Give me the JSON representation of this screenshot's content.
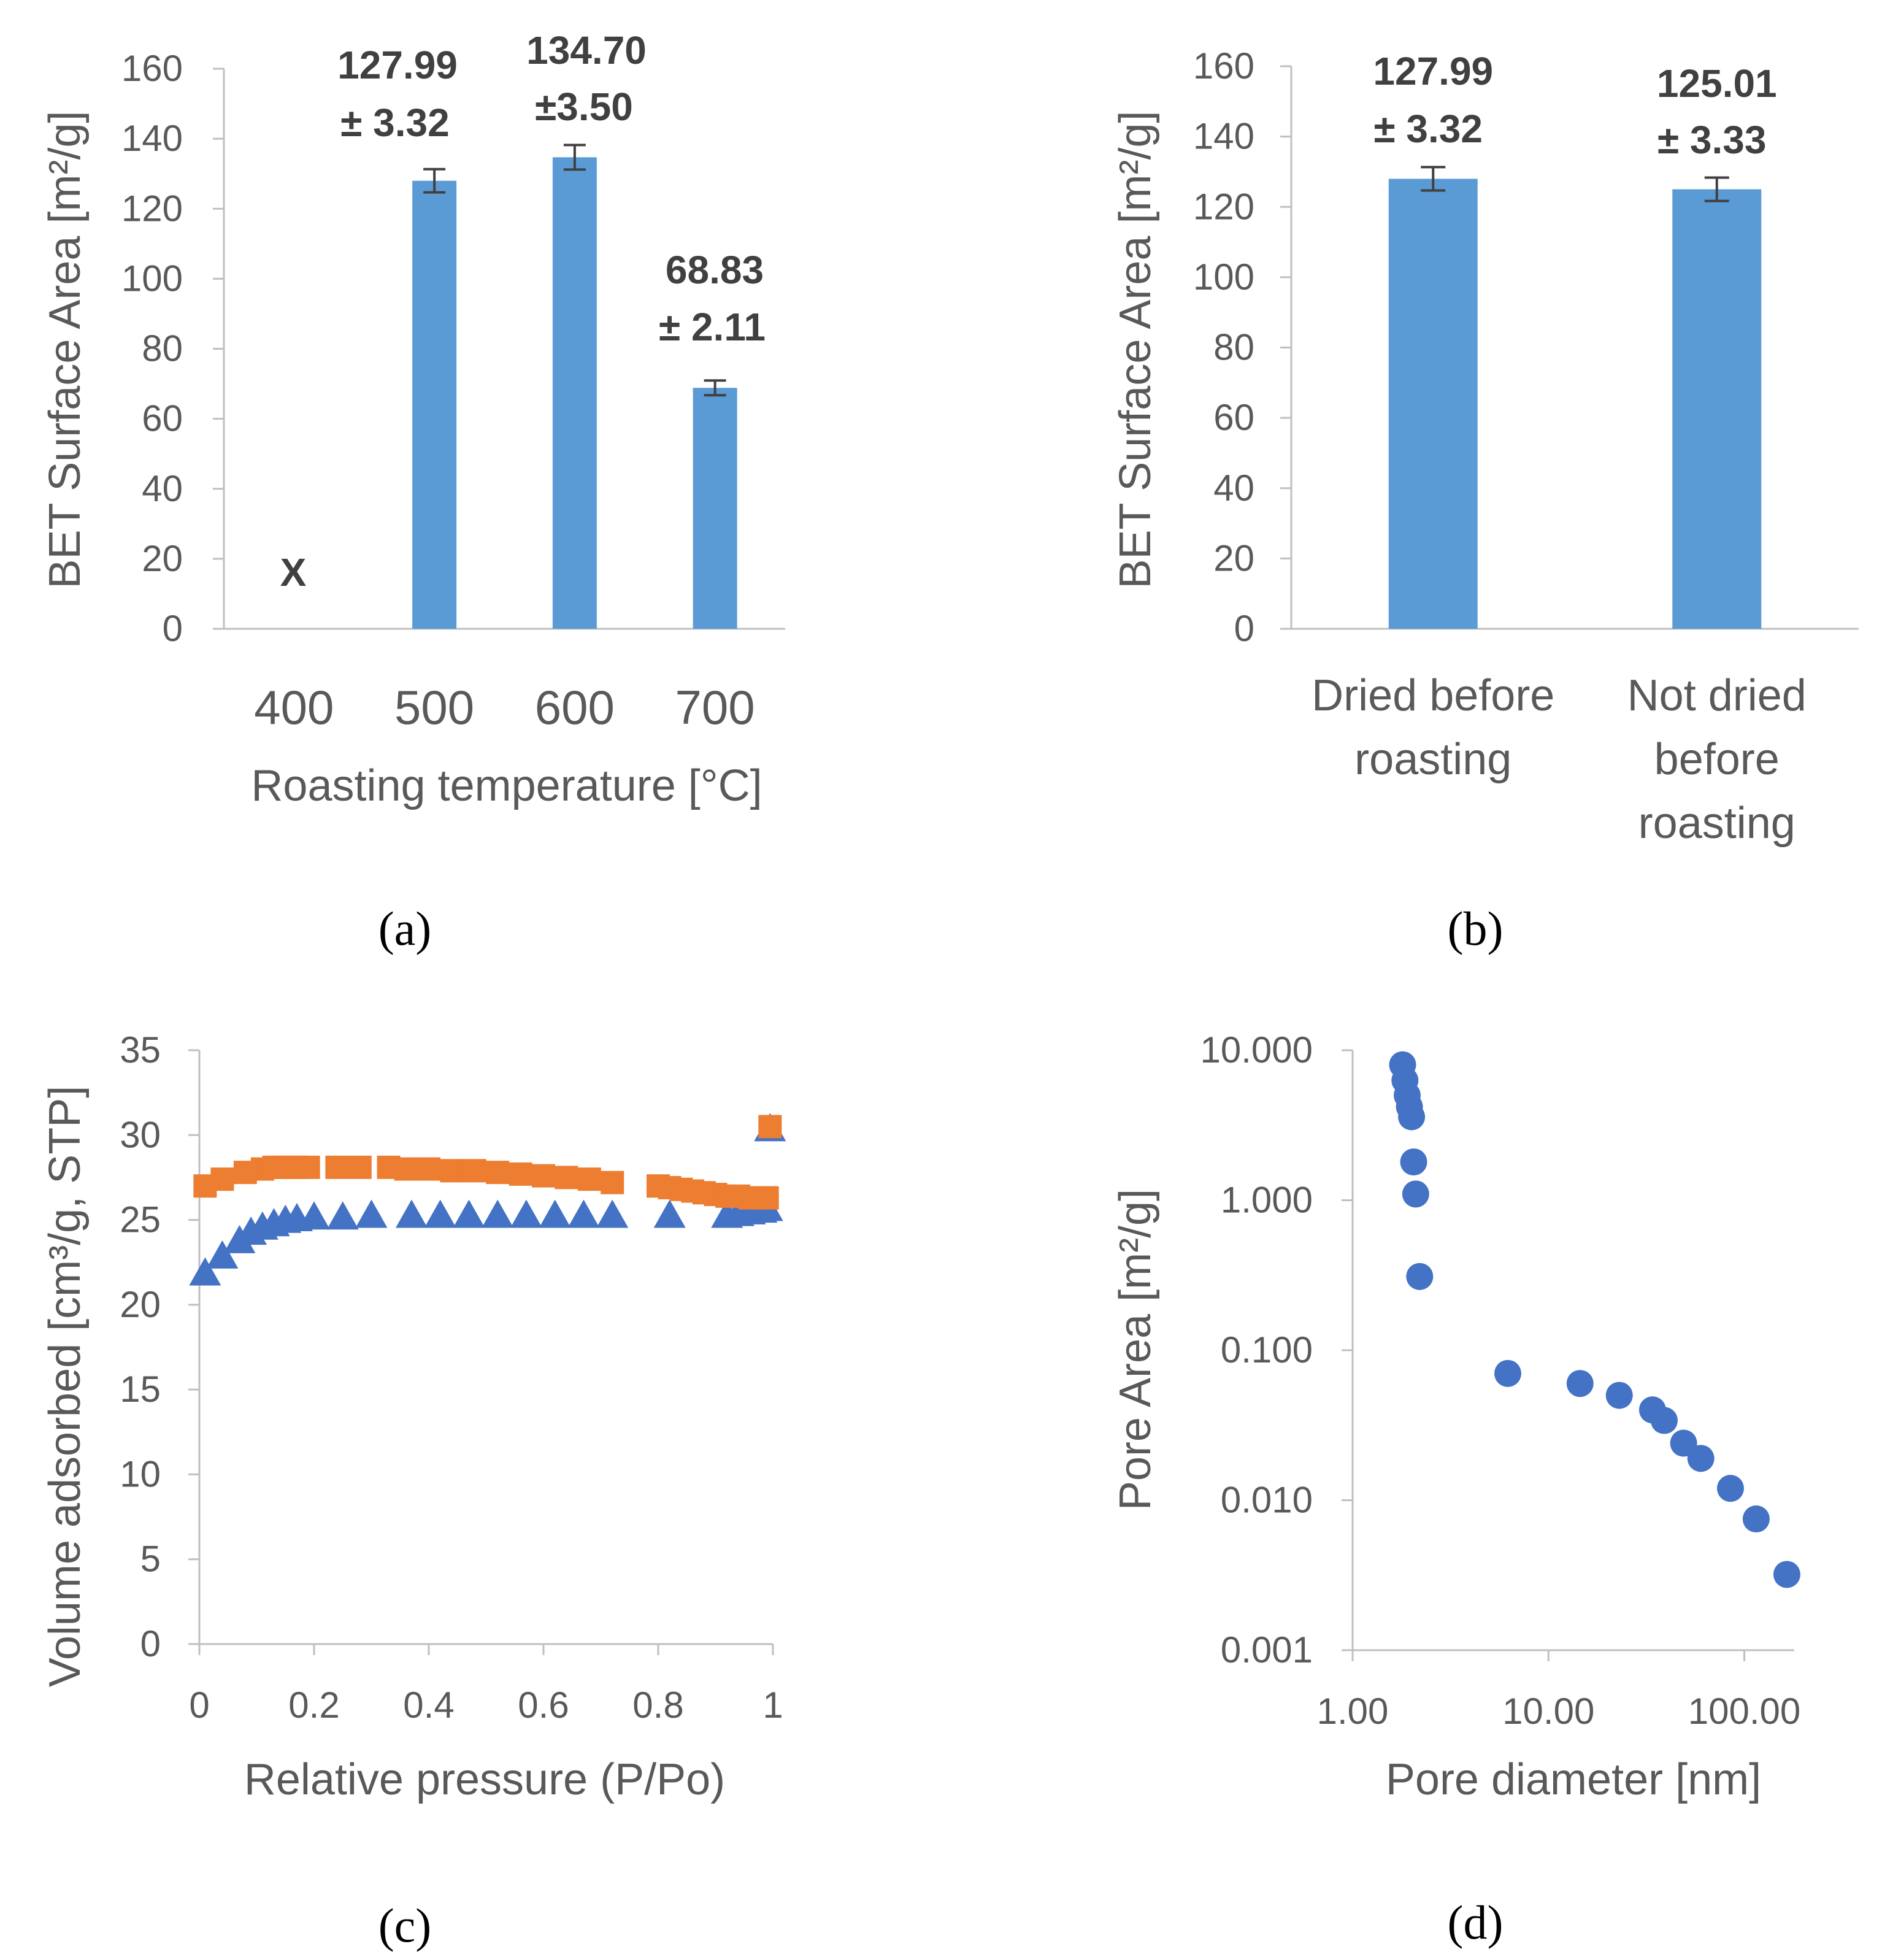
{
  "colors": {
    "bar": "#5b9bd5",
    "blue_marker": "#4472c4",
    "orange_marker": "#ed7d31",
    "axis": "#bfbfbf",
    "text": "#595959"
  },
  "chart_data": [
    {
      "panel": "(a)",
      "type": "bar",
      "xlabel": "Roasting temperature [°C]",
      "ylabel": "BET Surface Area [m²/g]",
      "ylim": [
        0,
        160
      ],
      "yticks": [
        "0",
        "20",
        "40",
        "60",
        "80",
        "100",
        "120",
        "140",
        "160"
      ],
      "categories": [
        "400",
        "500",
        "600",
        "700"
      ],
      "values": [
        null,
        127.99,
        134.7,
        68.83
      ],
      "errors": [
        null,
        3.32,
        3.5,
        2.11
      ],
      "labels": [
        {
          "line1": "X",
          "line2": ""
        },
        {
          "line1": "127.99",
          "line2": "± 3.32"
        },
        {
          "line1": "134.70",
          "line2": "±3.50"
        },
        {
          "line1": "68.83",
          "line2": "± 2.11"
        }
      ],
      "grid": false
    },
    {
      "panel": "(b)",
      "type": "bar",
      "xlabel": "",
      "ylabel": "BET Surface Area [m²/g]",
      "ylim": [
        0,
        160
      ],
      "yticks": [
        "0",
        "20",
        "40",
        "60",
        "80",
        "100",
        "120",
        "140",
        "160"
      ],
      "categories": [
        [
          "Dried before",
          "roasting"
        ],
        [
          "Not dried",
          "before",
          "roasting"
        ]
      ],
      "values": [
        127.99,
        125.01
      ],
      "errors": [
        3.32,
        3.33
      ],
      "labels": [
        {
          "line1": "127.99",
          "line2": "± 3.32"
        },
        {
          "line1": "125.01",
          "line2": "± 3.33"
        }
      ],
      "grid": false
    },
    {
      "panel": "(c)",
      "type": "scatter",
      "xlabel": "Relative pressure (P/Po)",
      "ylabel": "Volume adsorbed [cm³/g, STP]",
      "xlim": [
        0,
        1
      ],
      "ylim": [
        0,
        35
      ],
      "xticks": [
        "0",
        "0.2",
        "0.4",
        "0.6",
        "0.8",
        "1"
      ],
      "yticks": [
        "0",
        "5",
        "10",
        "15",
        "20",
        "25",
        "30",
        "35"
      ],
      "series": [
        {
          "marker": "triangle",
          "color": "#4472c4",
          "points": [
            [
              0.01,
              21.8
            ],
            [
              0.04,
              22.8
            ],
            [
              0.07,
              23.7
            ],
            [
              0.09,
              24.2
            ],
            [
              0.11,
              24.5
            ],
            [
              0.13,
              24.7
            ],
            [
              0.15,
              24.9
            ],
            [
              0.17,
              25.0
            ],
            [
              0.2,
              25.1
            ],
            [
              0.25,
              25.1
            ],
            [
              0.3,
              25.2
            ],
            [
              0.37,
              25.2
            ],
            [
              0.42,
              25.2
            ],
            [
              0.47,
              25.2
            ],
            [
              0.52,
              25.2
            ],
            [
              0.57,
              25.2
            ],
            [
              0.62,
              25.2
            ],
            [
              0.67,
              25.2
            ],
            [
              0.72,
              25.2
            ],
            [
              0.82,
              25.2
            ],
            [
              0.92,
              25.2
            ],
            [
              0.94,
              25.3
            ],
            [
              0.96,
              25.4
            ],
            [
              0.98,
              25.5
            ],
            [
              0.99,
              25.6
            ],
            [
              0.995,
              30.3
            ]
          ]
        },
        {
          "marker": "square",
          "color": "#ed7d31",
          "points": [
            [
              0.995,
              30.5
            ],
            [
              0.99,
              26.3
            ],
            [
              0.98,
              26.3
            ],
            [
              0.96,
              26.3
            ],
            [
              0.94,
              26.4
            ],
            [
              0.92,
              26.4
            ],
            [
              0.9,
              26.5
            ],
            [
              0.88,
              26.6
            ],
            [
              0.86,
              26.7
            ],
            [
              0.84,
              26.8
            ],
            [
              0.82,
              26.9
            ],
            [
              0.8,
              27.0
            ],
            [
              0.72,
              27.2
            ],
            [
              0.68,
              27.4
            ],
            [
              0.64,
              27.5
            ],
            [
              0.6,
              27.6
            ],
            [
              0.56,
              27.7
            ],
            [
              0.52,
              27.8
            ],
            [
              0.48,
              27.9
            ],
            [
              0.44,
              27.9
            ],
            [
              0.4,
              28.0
            ],
            [
              0.36,
              28.0
            ],
            [
              0.33,
              28.1
            ],
            [
              0.28,
              28.1
            ],
            [
              0.24,
              28.1
            ],
            [
              0.19,
              28.1
            ],
            [
              0.17,
              28.1
            ],
            [
              0.15,
              28.1
            ],
            [
              0.13,
              28.1
            ],
            [
              0.11,
              28.0
            ],
            [
              0.08,
              27.8
            ],
            [
              0.04,
              27.4
            ],
            [
              0.01,
              27.0
            ]
          ]
        }
      ],
      "grid": false
    },
    {
      "panel": "(d)",
      "type": "scatter",
      "xscale": "log",
      "yscale": "log",
      "xlabel": "Pore diameter [nm]",
      "ylabel": "Pore Area [m²/g]",
      "xlim": [
        1,
        180
      ],
      "ylim": [
        0.001,
        10
      ],
      "xticks": [
        "1.00",
        "10.00",
        "100.00"
      ],
      "xtick_values": [
        1,
        10,
        100
      ],
      "yticks": [
        "0.001",
        "0.010",
        "0.100",
        "1.000",
        "10.000"
      ],
      "ytick_values": [
        0.001,
        0.01,
        0.1,
        1,
        10
      ],
      "series": [
        {
          "marker": "circle",
          "color": "#4472c4",
          "points": [
            [
              1.8,
              8.0
            ],
            [
              1.85,
              6.3
            ],
            [
              1.9,
              5.0
            ],
            [
              1.95,
              4.2
            ],
            [
              2.0,
              3.6
            ],
            [
              2.05,
              1.8
            ],
            [
              2.1,
              1.1
            ],
            [
              2.2,
              0.31
            ],
            [
              6.2,
              0.07
            ],
            [
              14.5,
              0.06
            ],
            [
              23.0,
              0.05
            ],
            [
              34.0,
              0.04
            ],
            [
              39.0,
              0.034
            ],
            [
              49.0,
              0.024
            ],
            [
              60.0,
              0.019
            ],
            [
              85.0,
              0.012
            ],
            [
              115.0,
              0.0075
            ],
            [
              165.0,
              0.0032
            ]
          ]
        }
      ],
      "grid": false
    }
  ]
}
